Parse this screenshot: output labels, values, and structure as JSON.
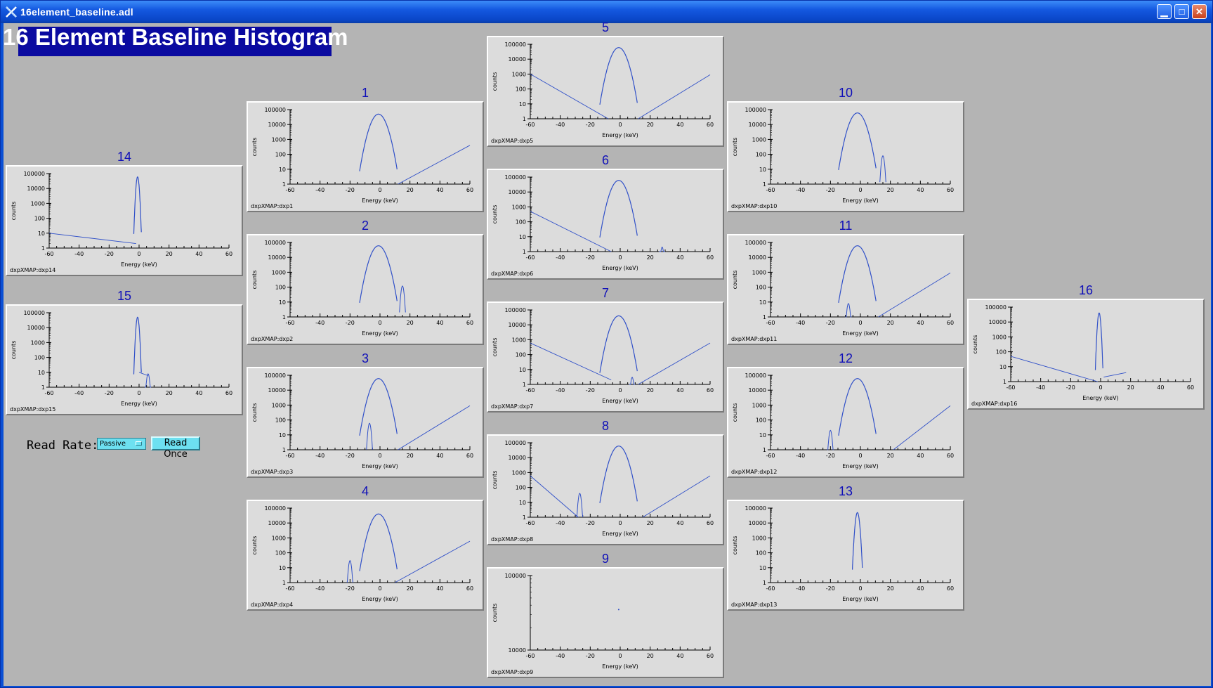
{
  "window": {
    "title": "16element_baseline.adl",
    "controls": {
      "minimize": "▁",
      "maximize": "□",
      "close": "✕"
    }
  },
  "main_title": "16 Element Baseline Histogram",
  "controls": {
    "read_rate_label": "Read Rate:",
    "read_rate_value": "Passive",
    "read_once_label": "Read Once"
  },
  "axis": {
    "xlabel": "Energy (keV)",
    "ylabel": "counts",
    "x_ticks": [
      "-60",
      "-40",
      "-20",
      "0",
      "20",
      "40",
      "60"
    ],
    "y_ticks": [
      "1",
      "10",
      "100",
      "1000",
      "10000",
      "100000"
    ]
  },
  "colors": {
    "trace": "#3050c8",
    "label": "#1010b8"
  },
  "chart_data": [
    {
      "id": "1",
      "pv": "dxpXMAP:dxp1",
      "type": "line",
      "xlim": [
        -60,
        60
      ],
      "ylim": [
        1,
        100000
      ],
      "yscale": "log",
      "peak": {
        "x": -1,
        "y": 50000,
        "width": 3
      },
      "segments": [
        [
          [
            12,
            1
          ],
          [
            60,
            400
          ]
        ]
      ],
      "blips": []
    },
    {
      "id": "2",
      "pv": "dxpXMAP:dxp2",
      "type": "line",
      "xlim": [
        -60,
        60
      ],
      "ylim": [
        1,
        100000
      ],
      "yscale": "log",
      "peak": {
        "x": -1,
        "y": 60000,
        "width": 3
      },
      "segments": [],
      "blips": [
        {
          "x": 15,
          "y": 120
        }
      ]
    },
    {
      "id": "3",
      "pv": "dxpXMAP:dxp3",
      "type": "line",
      "xlim": [
        -60,
        60
      ],
      "ylim": [
        1,
        100000
      ],
      "yscale": "log",
      "peak": {
        "x": -1,
        "y": 60000,
        "width": 3
      },
      "segments": [
        [
          [
            12,
            1
          ],
          [
            60,
            900
          ]
        ]
      ],
      "blips": [
        {
          "x": -7,
          "y": 60
        }
      ]
    },
    {
      "id": "4",
      "pv": "dxpXMAP:dxp4",
      "type": "line",
      "xlim": [
        -60,
        60
      ],
      "ylim": [
        1,
        100000
      ],
      "yscale": "log",
      "peak": {
        "x": -1,
        "y": 40000,
        "width": 3
      },
      "segments": [
        [
          [
            10,
            1
          ],
          [
            60,
            600
          ]
        ]
      ],
      "blips": [
        {
          "x": -20,
          "y": 30
        }
      ]
    },
    {
      "id": "5",
      "pv": "dxpXMAP:dxp5",
      "type": "line",
      "xlim": [
        -60,
        60
      ],
      "ylim": [
        1,
        100000
      ],
      "yscale": "log",
      "peak": {
        "x": -1,
        "y": 60000,
        "width": 3
      },
      "segments": [
        [
          [
            -60,
            1000
          ],
          [
            -8,
            1
          ]
        ],
        [
          [
            12,
            1
          ],
          [
            60,
            900
          ]
        ]
      ],
      "blips": []
    },
    {
      "id": "6",
      "pv": "dxpXMAP:dxp6",
      "type": "line",
      "xlim": [
        -60,
        60
      ],
      "ylim": [
        1,
        100000
      ],
      "yscale": "log",
      "peak": {
        "x": -1,
        "y": 60000,
        "width": 3
      },
      "segments": [
        [
          [
            -60,
            500
          ],
          [
            -6,
            1
          ]
        ]
      ],
      "blips": [
        {
          "x": 28,
          "y": 2
        }
      ]
    },
    {
      "id": "7",
      "pv": "dxpXMAP:dxp7",
      "type": "line",
      "xlim": [
        -60,
        60
      ],
      "ylim": [
        1,
        100000
      ],
      "yscale": "log",
      "peak": {
        "x": -1,
        "y": 40000,
        "width": 3
      },
      "segments": [
        [
          [
            -60,
            600
          ],
          [
            -6,
            2
          ]
        ],
        [
          [
            12,
            1
          ],
          [
            60,
            600
          ]
        ]
      ],
      "blips": [
        {
          "x": 8,
          "y": 3
        }
      ]
    },
    {
      "id": "8",
      "pv": "dxpXMAP:dxp8",
      "type": "line",
      "xlim": [
        -60,
        60
      ],
      "ylim": [
        1,
        100000
      ],
      "yscale": "log",
      "peak": {
        "x": -1,
        "y": 60000,
        "width": 3
      },
      "segments": [
        [
          [
            -60,
            600
          ],
          [
            -28,
            1
          ]
        ],
        [
          [
            15,
            1
          ],
          [
            60,
            600
          ]
        ]
      ],
      "blips": [
        {
          "x": -27,
          "y": 40
        }
      ]
    },
    {
      "id": "9",
      "pv": "dxpXMAP:dxp9",
      "type": "line",
      "xlim": [
        -60,
        60
      ],
      "ylim": [
        10000,
        100000
      ],
      "yscale": "log",
      "y_ticks": [
        "10000",
        "100000"
      ],
      "peak": null,
      "segments": [],
      "blips": [],
      "dot": {
        "x": -1,
        "y": 35000
      }
    },
    {
      "id": "10",
      "pv": "dxpXMAP:dxp10",
      "type": "line",
      "xlim": [
        -60,
        60
      ],
      "ylim": [
        1,
        100000
      ],
      "yscale": "log",
      "peak": {
        "x": -2,
        "y": 60000,
        "width": 3
      },
      "segments": [],
      "blips": [
        {
          "x": 15,
          "y": 80
        }
      ]
    },
    {
      "id": "11",
      "pv": "dxpXMAP:dxp11",
      "type": "line",
      "xlim": [
        -60,
        60
      ],
      "ylim": [
        1,
        100000
      ],
      "yscale": "log",
      "peak": {
        "x": -2,
        "y": 60000,
        "width": 3
      },
      "segments": [
        [
          [
            12,
            1
          ],
          [
            60,
            900
          ]
        ]
      ],
      "blips": [
        {
          "x": -8,
          "y": 8
        }
      ]
    },
    {
      "id": "12",
      "pv": "dxpXMAP:dxp12",
      "type": "line",
      "xlim": [
        -60,
        60
      ],
      "ylim": [
        1,
        100000
      ],
      "yscale": "log",
      "peak": {
        "x": -2,
        "y": 60000,
        "width": 3
      },
      "segments": [
        [
          [
            22,
            1
          ],
          [
            60,
            900
          ]
        ]
      ],
      "blips": [
        {
          "x": -20,
          "y": 20
        }
      ]
    },
    {
      "id": "13",
      "pv": "dxpXMAP:dxp13",
      "type": "line",
      "xlim": [
        -60,
        60
      ],
      "ylim": [
        1,
        100000
      ],
      "yscale": "log",
      "peak": {
        "x": -2,
        "y": 50000,
        "width": 0.8
      },
      "segments": [],
      "blips": []
    },
    {
      "id": "14",
      "pv": "dxpXMAP:dxp14",
      "type": "line",
      "xlim": [
        -60,
        60
      ],
      "ylim": [
        1,
        100000
      ],
      "yscale": "log",
      "peak": {
        "x": -1,
        "y": 60000,
        "width": 0.6
      },
      "segments": [
        [
          [
            -60,
            10
          ],
          [
            -2,
            2
          ]
        ]
      ],
      "blips": []
    },
    {
      "id": "15",
      "pv": "dxpXMAP:dxp15",
      "type": "line",
      "xlim": [
        -60,
        60
      ],
      "ylim": [
        1,
        100000
      ],
      "yscale": "log",
      "peak": {
        "x": -1,
        "y": 50000,
        "width": 0.6
      },
      "segments": [
        [
          [
            0,
            10
          ],
          [
            6,
            6
          ]
        ]
      ],
      "blips": [
        {
          "x": 6,
          "y": 8
        }
      ]
    },
    {
      "id": "16",
      "pv": "dxpXMAP:dxp16",
      "type": "line",
      "xlim": [
        -60,
        60
      ],
      "ylim": [
        1,
        100000
      ],
      "yscale": "log",
      "peak": {
        "x": -1,
        "y": 40000,
        "width": 0.6
      },
      "segments": [
        [
          [
            -60,
            50
          ],
          [
            -2,
            1
          ]
        ],
        [
          [
            2,
            2
          ],
          [
            17,
            4
          ]
        ]
      ],
      "blips": []
    }
  ]
}
